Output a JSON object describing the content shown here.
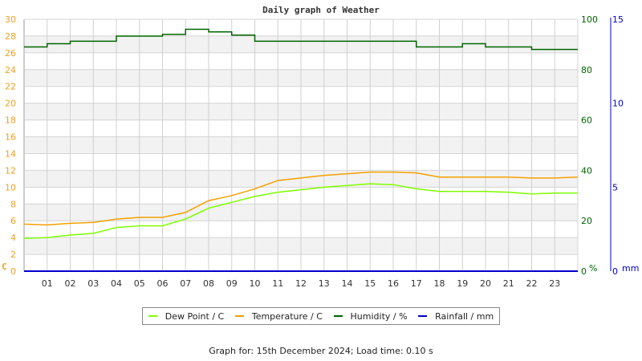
{
  "title": "Daily graph of Weather",
  "footer": "Graph for: 15th December 2024; Load time: 0.10 s",
  "colors": {
    "dew_point": "#7fff00",
    "temperature": "#f5a000",
    "humidity": "#006400",
    "rainfall": "#0000cc",
    "left_axis": "#f0a020",
    "humidity_axis": "#006400",
    "rain_axis": "#0000cc"
  },
  "legend": [
    {
      "label": "Dew Point / C",
      "color": "#7fff00"
    },
    {
      "label": "Temperature / C",
      "color": "#f5a000"
    },
    {
      "label": "Humidity / %",
      "color": "#006400"
    },
    {
      "label": "Rainfall / mm",
      "color": "#0000cc"
    }
  ],
  "chart_data": {
    "type": "line",
    "title": "Daily graph of Weather",
    "xlabel": "",
    "x_ticks": [
      "01",
      "02",
      "03",
      "04",
      "05",
      "06",
      "07",
      "08",
      "09",
      "10",
      "11",
      "12",
      "13",
      "14",
      "15",
      "16",
      "17",
      "18",
      "19",
      "20",
      "21",
      "22",
      "23"
    ],
    "axes": {
      "left": {
        "label": "C",
        "ylim": [
          0,
          30
        ],
        "ticks": [
          0,
          2,
          4,
          6,
          8,
          10,
          12,
          14,
          16,
          18,
          20,
          22,
          24,
          26,
          28,
          30
        ]
      },
      "right1": {
        "label": "%",
        "ylim": [
          0,
          100
        ],
        "ticks": [
          0,
          20,
          40,
          60,
          80,
          100
        ]
      },
      "right2": {
        "label": "mm",
        "ylim": [
          0,
          15
        ],
        "ticks": [
          0,
          5,
          10,
          15
        ]
      }
    },
    "grid": true,
    "legend_position": "bottom",
    "x": [
      0,
      1,
      2,
      3,
      4,
      5,
      6,
      7,
      8,
      9,
      10,
      11,
      12,
      13,
      14,
      15,
      16,
      17,
      18,
      19,
      20,
      21,
      22,
      23,
      24
    ],
    "series": [
      {
        "name": "Dew Point / C",
        "axis": "left",
        "values": [
          3.9,
          4.0,
          4.3,
          4.5,
          5.2,
          5.4,
          5.4,
          6.2,
          7.5,
          8.2,
          8.9,
          9.4,
          9.7,
          10.0,
          10.2,
          10.4,
          10.3,
          9.8,
          9.5,
          9.5,
          9.5,
          9.4,
          9.2,
          9.3,
          9.3
        ]
      },
      {
        "name": "Temperature / C",
        "axis": "left",
        "values": [
          5.6,
          5.5,
          5.7,
          5.8,
          6.2,
          6.4,
          6.4,
          7.0,
          8.4,
          9.0,
          9.8,
          10.8,
          11.1,
          11.4,
          11.6,
          11.8,
          11.8,
          11.7,
          11.2,
          11.2,
          11.2,
          11.2,
          11.1,
          11.1,
          11.2
        ]
      },
      {
        "name": "Humidity / %",
        "axis": "right1",
        "values": [
          89,
          90.3,
          91.3,
          91.3,
          93.3,
          93.3,
          94,
          96,
          95,
          93.7,
          91.3,
          91.3,
          91.3,
          91.3,
          91.3,
          91.3,
          91.3,
          89,
          89,
          90.3,
          89,
          89,
          88,
          88,
          88
        ]
      },
      {
        "name": "Rainfall / mm",
        "axis": "right2",
        "values": [
          0,
          0,
          0,
          0,
          0,
          0,
          0,
          0,
          0,
          0,
          0,
          0,
          0,
          0,
          0,
          0,
          0,
          0,
          0,
          0,
          0,
          0,
          0,
          0,
          0
        ]
      }
    ]
  }
}
